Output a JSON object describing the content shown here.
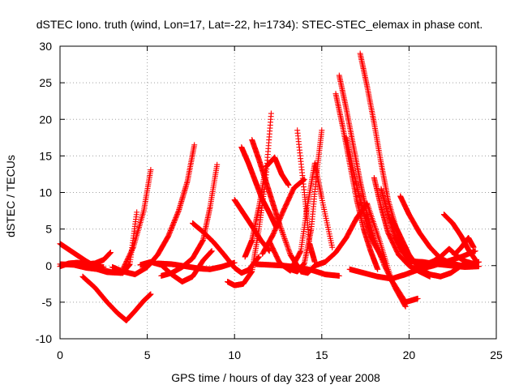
{
  "chart_data": {
    "type": "scatter",
    "title": "dSTEC Iono. truth (wind, Lon=17, Lat=-22, h=1734): STEC-STEC_elemax in phase cont.",
    "xlabel": "GPS time / hours of day 323 of year 2008",
    "ylabel": "dSTEC  / TECUs",
    "xlim": [
      0,
      25
    ],
    "ylim": [
      -10,
      30
    ],
    "xticks": [
      0,
      5,
      10,
      15,
      20,
      25
    ],
    "yticks": [
      -10,
      -5,
      0,
      5,
      10,
      15,
      20,
      25,
      30
    ],
    "grid": true,
    "marker": "+",
    "color": "#ff0000",
    "series": [
      {
        "x": [
          0.0,
          0.5,
          1.0,
          1.5,
          2.0,
          2.5
        ],
        "y": [
          3.0,
          2.2,
          1.4,
          0.6,
          -0.1,
          -0.2
        ]
      },
      {
        "x": [
          0.0,
          0.5,
          1.0,
          1.5,
          2.0,
          2.5,
          2.9
        ],
        "y": [
          -0.1,
          0.3,
          0.4,
          0.2,
          0.3,
          0.8,
          1.8
        ]
      },
      {
        "x": [
          0.0,
          0.8,
          1.5,
          2.2,
          3.0,
          3.6,
          4.0,
          4.4
        ],
        "y": [
          0.2,
          0.1,
          -0.3,
          -0.5,
          -0.9,
          -1.0,
          0.2,
          7.3
        ]
      },
      {
        "x": [
          1.3,
          2.0,
          2.7,
          3.3,
          3.8,
          4.3,
          4.8,
          5.2
        ],
        "y": [
          -1.5,
          -3.0,
          -5.0,
          -6.5,
          -7.5,
          -6.2,
          -4.8,
          -3.9
        ]
      },
      {
        "x": [
          1.2,
          2.0,
          2.7,
          3.5,
          4.2,
          4.8,
          5.2
        ],
        "y": [
          0.1,
          -0.4,
          -0.9,
          -1.0,
          2.5,
          7.5,
          13.1
        ]
      },
      {
        "x": [
          3.0,
          3.6,
          4.3,
          5.0,
          5.6,
          6.2,
          6.8,
          7.3,
          7.7
        ],
        "y": [
          -0.2,
          -0.8,
          -1.2,
          -0.2,
          1.5,
          4.0,
          7.5,
          11.5,
          16.5
        ]
      },
      {
        "x": [
          4.6,
          5.2,
          5.8,
          6.4,
          7.0,
          7.6,
          8.2,
          8.7
        ],
        "y": [
          0.1,
          0.5,
          0.1,
          -1.2,
          -2.2,
          -1.5,
          0.7,
          2.0
        ]
      },
      {
        "x": [
          5.8,
          6.4,
          7.0,
          7.6,
          8.2,
          8.6,
          9.0
        ],
        "y": [
          -1.4,
          -1.0,
          -0.2,
          1.0,
          3.5,
          8.0,
          13.8
        ]
      },
      {
        "x": [
          5.6,
          6.4,
          7.2,
          8.0,
          8.6,
          9.2,
          10.0
        ],
        "y": [
          0.3,
          0.2,
          -0.1,
          -0.4,
          -0.5,
          -0.2,
          0.4
        ]
      },
      {
        "x": [
          7.6,
          8.2,
          8.8,
          9.4,
          10.0,
          10.4,
          10.8,
          11.4
        ],
        "y": [
          5.8,
          4.6,
          3.2,
          1.5,
          -0.3,
          -1.0,
          -0.6,
          1.2
        ]
      },
      {
        "x": [
          10.0,
          10.5,
          11.0,
          11.5,
          12.0
        ],
        "y": [
          9.0,
          7.2,
          5.4,
          3.5,
          2.0
        ]
      },
      {
        "x": [
          10.4,
          10.8,
          11.2,
          11.6,
          12.0,
          12.4
        ],
        "y": [
          16.2,
          14.0,
          11.5,
          9.0,
          7.2,
          5.2
        ]
      },
      {
        "x": [
          11.0,
          11.4,
          11.8,
          12.2,
          12.6,
          13.2,
          13.8,
          14.2,
          14.6
        ],
        "y": [
          17.2,
          14.5,
          11.5,
          8.5,
          5.5,
          1.5,
          -0.8,
          -1.0,
          0.0
        ]
      },
      {
        "x": [
          9.6,
          10.0,
          10.5,
          11.0,
          11.4,
          11.8,
          12.1
        ],
        "y": [
          -2.2,
          -2.7,
          -2.5,
          -0.8,
          5.0,
          12.0,
          20.8
        ]
      },
      {
        "x": [
          10.6,
          11.0,
          11.4,
          11.8,
          12.3,
          12.7,
          13.1
        ],
        "y": [
          1.2,
          3.5,
          8.0,
          13.5,
          14.8,
          12.5,
          11.0
        ]
      },
      {
        "x": [
          11.2,
          12.0,
          12.8,
          13.6,
          14.4,
          15.2,
          16.0
        ],
        "y": [
          0.2,
          0.1,
          0.0,
          -0.2,
          -0.6,
          -1.2,
          -1.4
        ]
      },
      {
        "x": [
          11.6,
          12.2,
          12.8,
          13.4,
          14.0
        ],
        "y": [
          1.6,
          4.2,
          7.5,
          10.6,
          11.8
        ]
      },
      {
        "x": [
          12.0,
          12.6,
          13.2,
          13.8,
          14.2,
          14.6,
          15.0,
          15.6
        ],
        "y": [
          3.3,
          0.3,
          -0.7,
          2.0,
          8.5,
          14.0,
          9.2,
          2.5
        ]
      },
      {
        "x": [
          13.6,
          14.0,
          14.3,
          14.6
        ],
        "y": [
          18.5,
          10.0,
          3.0,
          0.5
        ]
      },
      {
        "x": [
          13.2,
          13.6,
          14.0,
          14.4,
          14.7,
          15.0
        ],
        "y": [
          -0.5,
          -0.8,
          0.3,
          5.0,
          12.5,
          18.5
        ]
      },
      {
        "x": [
          14.6,
          15.2,
          15.8,
          16.4,
          17.0,
          17.6,
          18.3,
          19.0,
          19.8,
          20.5
        ],
        "y": [
          0.0,
          0.5,
          1.8,
          3.8,
          6.5,
          8.5,
          3.5,
          -2.0,
          -5.0,
          -4.5
        ]
      },
      {
        "x": [
          15.8,
          16.2,
          16.6,
          17.0,
          17.4,
          17.8,
          18.2
        ],
        "y": [
          23.5,
          19.0,
          14.0,
          9.0,
          5.0,
          2.0,
          -0.5
        ]
      },
      {
        "x": [
          16.0,
          16.4,
          16.8,
          17.2,
          17.6,
          18.0,
          18.6,
          19.2,
          19.8
        ],
        "y": [
          26.0,
          21.5,
          16.5,
          11.5,
          7.0,
          3.5,
          0.0,
          -3.0,
          -5.6
        ]
      },
      {
        "x": [
          16.4,
          16.8,
          17.2,
          17.6,
          18.0,
          18.6
        ],
        "y": [
          17.5,
          13.0,
          9.0,
          5.5,
          3.0,
          0.5
        ]
      },
      {
        "x": [
          17.2,
          17.6,
          18.0,
          18.4,
          18.8,
          19.4,
          20.0
        ],
        "y": [
          29.0,
          24.5,
          19.5,
          14.0,
          9.0,
          4.0,
          0.5
        ]
      },
      {
        "x": [
          18.0,
          18.4,
          18.8,
          19.4,
          20.0,
          20.6,
          21.2
        ],
        "y": [
          12.0,
          8.0,
          4.5,
          1.5,
          0.0,
          -0.8,
          -1.5
        ]
      },
      {
        "x": [
          18.4,
          18.8,
          19.2,
          19.6,
          20.0,
          20.6,
          21.2,
          21.8
        ],
        "y": [
          10.5,
          7.0,
          4.0,
          2.0,
          0.8,
          0.4,
          0.3,
          0.5
        ]
      },
      {
        "x": [
          19.0,
          19.5,
          20.0,
          20.6,
          21.2,
          21.8,
          22.4,
          23.0,
          23.8
        ],
        "y": [
          6.5,
          4.0,
          1.5,
          -0.5,
          -1.2,
          -1.5,
          -1.0,
          0.0,
          0.4
        ]
      },
      {
        "x": [
          19.5,
          20.0,
          20.6,
          21.2,
          21.8,
          22.4,
          23.0,
          23.6,
          24.0
        ],
        "y": [
          9.5,
          7.0,
          4.5,
          2.5,
          1.0,
          0.3,
          0.0,
          0.2,
          0.5
        ]
      },
      {
        "x": [
          16.6,
          17.4,
          18.2,
          19.0,
          19.8,
          20.6,
          21.4,
          22.2,
          23.0,
          23.8
        ],
        "y": [
          -0.5,
          -1.0,
          -1.5,
          -1.8,
          -1.2,
          -0.5,
          0.0,
          0.6,
          1.2,
          2.0
        ]
      },
      {
        "x": [
          20.5,
          21.0,
          21.4,
          21.8,
          22.3,
          22.8,
          23.2,
          23.6
        ],
        "y": [
          -0.4,
          0.2,
          0.6,
          1.2,
          2.3,
          1.2,
          0.6,
          0.3
        ]
      },
      {
        "x": [
          22.0,
          22.5,
          23.0,
          23.4,
          23.8
        ],
        "y": [
          7.0,
          5.8,
          4.0,
          2.2,
          0.8
        ]
      },
      {
        "x": [
          22.6,
          23.0,
          23.4,
          23.7
        ],
        "y": [
          1.5,
          2.5,
          3.8,
          2.5
        ]
      },
      {
        "x": [
          20.0,
          20.8,
          21.6,
          22.4,
          23.2,
          24.0
        ],
        "y": [
          0.6,
          0.5,
          0.2,
          0.0,
          -0.2,
          -0.1
        ]
      }
    ]
  }
}
